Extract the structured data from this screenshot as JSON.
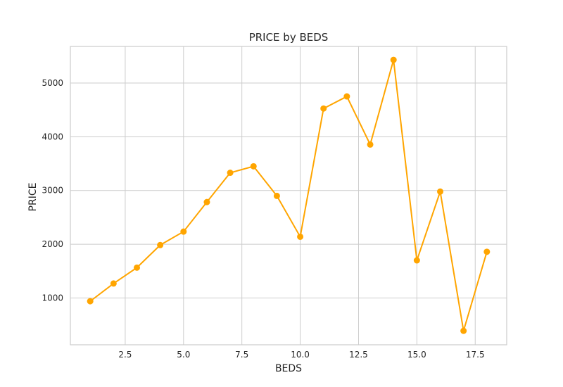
{
  "chart_data": {
    "type": "line",
    "title": "PRICE by BEDS",
    "xlabel": "BEDS",
    "ylabel": "PRICE",
    "xlim": [
      0.15,
      18.85
    ],
    "ylim": [
      130,
      5680
    ],
    "x_ticks": [
      2.5,
      5.0,
      7.5,
      10.0,
      12.5,
      15.0,
      17.5
    ],
    "x_tick_labels": [
      "2.5",
      "5.0",
      "7.5",
      "10.0",
      "12.5",
      "15.0",
      "17.5"
    ],
    "y_ticks": [
      1000,
      2000,
      3000,
      4000,
      5000
    ],
    "y_tick_labels": [
      "1000",
      "2000",
      "3000",
      "4000",
      "5000"
    ],
    "grid": true,
    "color": "#ffa500",
    "series": [
      {
        "x": [
          1,
          2,
          3,
          4,
          5,
          6,
          7,
          8,
          9,
          10,
          11,
          12,
          13,
          14,
          15,
          16,
          17,
          18
        ],
        "values": [
          940,
          1270,
          1565,
          1985,
          2235,
          2785,
          3330,
          3450,
          2900,
          2140,
          4525,
          4750,
          3855,
          5430,
          1700,
          2980,
          390,
          1860
        ]
      }
    ]
  }
}
